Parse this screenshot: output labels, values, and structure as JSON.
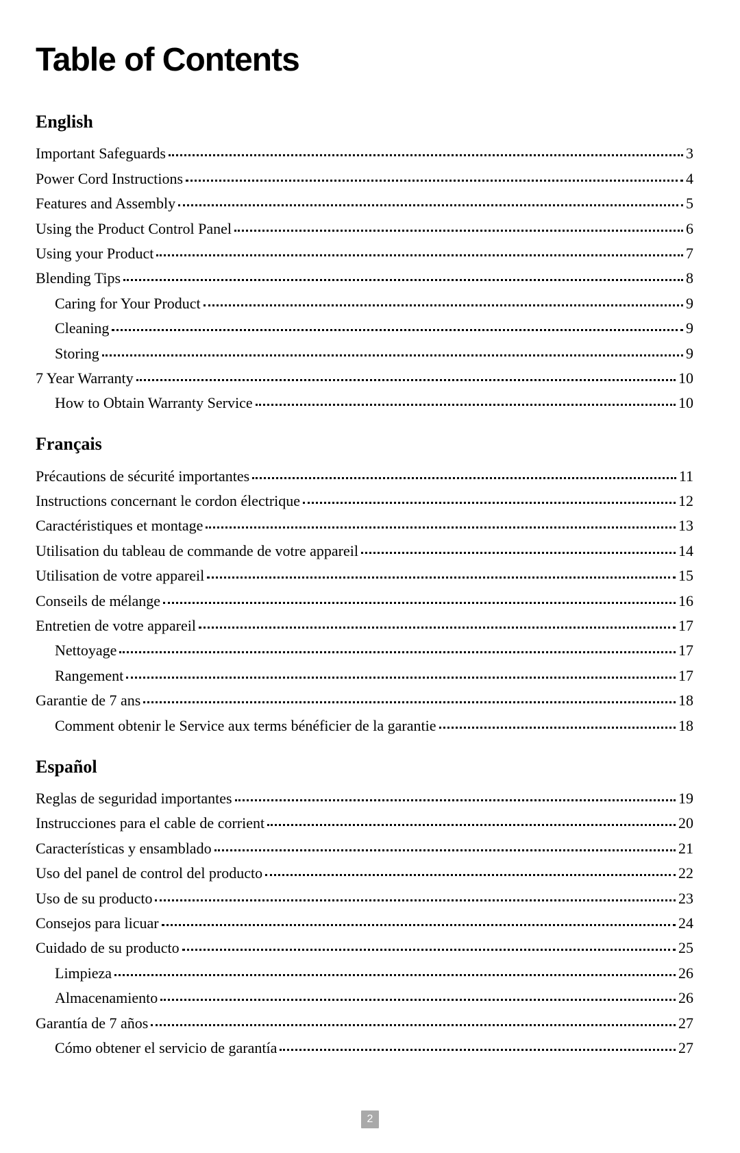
{
  "title": "Table of Contents",
  "page_number": "2",
  "colors": {
    "background": "#ffffff",
    "text": "#000000",
    "page_box_bg": "#a9a9a9",
    "page_box_text": "#ffffff"
  },
  "typography": {
    "title_font": "Arial Black",
    "title_size_pt": 36,
    "title_weight": 900,
    "body_font": "Georgia",
    "heading_size_pt": 20,
    "entry_size_pt": 16
  },
  "sections": [
    {
      "heading": "English",
      "entries": [
        {
          "label": "Important Safeguards",
          "page": "3",
          "indent": 0
        },
        {
          "label": "Power Cord Instructions ",
          "page": "4",
          "indent": 0
        },
        {
          "label": "Features and Assembly ",
          "page": "5",
          "indent": 0
        },
        {
          "label": "Using the Product Control Panel ",
          "page": "6",
          "indent": 0
        },
        {
          "label": "Using your Product ",
          "page": "7",
          "indent": 0
        },
        {
          "label": "Blending Tips ",
          "page": "8",
          "indent": 0
        },
        {
          "label": "Caring for Your Product",
          "page": "9",
          "indent": 1
        },
        {
          "label": "Cleaning ",
          "page": "9",
          "indent": 1
        },
        {
          "label": "Storing ",
          "page": "9",
          "indent": 1
        },
        {
          "label": "7 Year Warranty ",
          "page": "10",
          "indent": 0
        },
        {
          "label": "How to Obtain Warranty Service ",
          "page": "10",
          "indent": 1
        }
      ]
    },
    {
      "heading": "Français",
      "entries": [
        {
          "label": "Précautions de sécurité importantes ",
          "page": "11",
          "indent": 0
        },
        {
          "label": "Instructions concernant le cordon électrique",
          "page": "12",
          "indent": 0
        },
        {
          "label": "Caractéristiques et montage ",
          "page": "13",
          "indent": 0
        },
        {
          "label": "Utilisation du tableau de commande de votre appareil ",
          "page": "14",
          "indent": 0
        },
        {
          "label": "Utilisation de votre appareil",
          "page": "15",
          "indent": 0
        },
        {
          "label": "Conseils de mélange",
          "page": "16",
          "indent": 0
        },
        {
          "label": "Entretien de votre appareil ",
          "page": "17",
          "indent": 0
        },
        {
          "label": "Nettoyage",
          "page": "17",
          "indent": 1
        },
        {
          "label": "Rangement",
          "page": "17",
          "indent": 1
        },
        {
          "label": "Garantie de 7 ans",
          "page": "18",
          "indent": 0
        },
        {
          "label": "Comment obtenir le Service aux terms bénéficier de la garantie",
          "page": "18",
          "indent": 1
        }
      ]
    },
    {
      "heading": "Español",
      "entries": [
        {
          "label": "Reglas de seguridad importantes",
          "page": "19",
          "indent": 0
        },
        {
          "label": "Instrucciones para el cable de corrient ",
          "page": "20",
          "indent": 0
        },
        {
          "label": "Características y ensamblado ",
          "page": "21",
          "indent": 0
        },
        {
          "label": "Uso del panel de control del producto",
          "page": "22",
          "indent": 0
        },
        {
          "label": "Uso de su producto",
          "page": "23",
          "indent": 0
        },
        {
          "label": "Consejos para licuar",
          "page": "24",
          "indent": 0
        },
        {
          "label": "Cuidado de su producto ",
          "page": "25",
          "indent": 0
        },
        {
          "label": "Limpieza ",
          "page": "26",
          "indent": 1
        },
        {
          "label": "Almacenamiento",
          "page": "26",
          "indent": 1
        },
        {
          "label": "Garantía de 7 años ",
          "page": "27",
          "indent": 0
        },
        {
          "label": "Cómo obtener el servicio de garantía",
          "page": "27",
          "indent": 1
        }
      ]
    }
  ]
}
